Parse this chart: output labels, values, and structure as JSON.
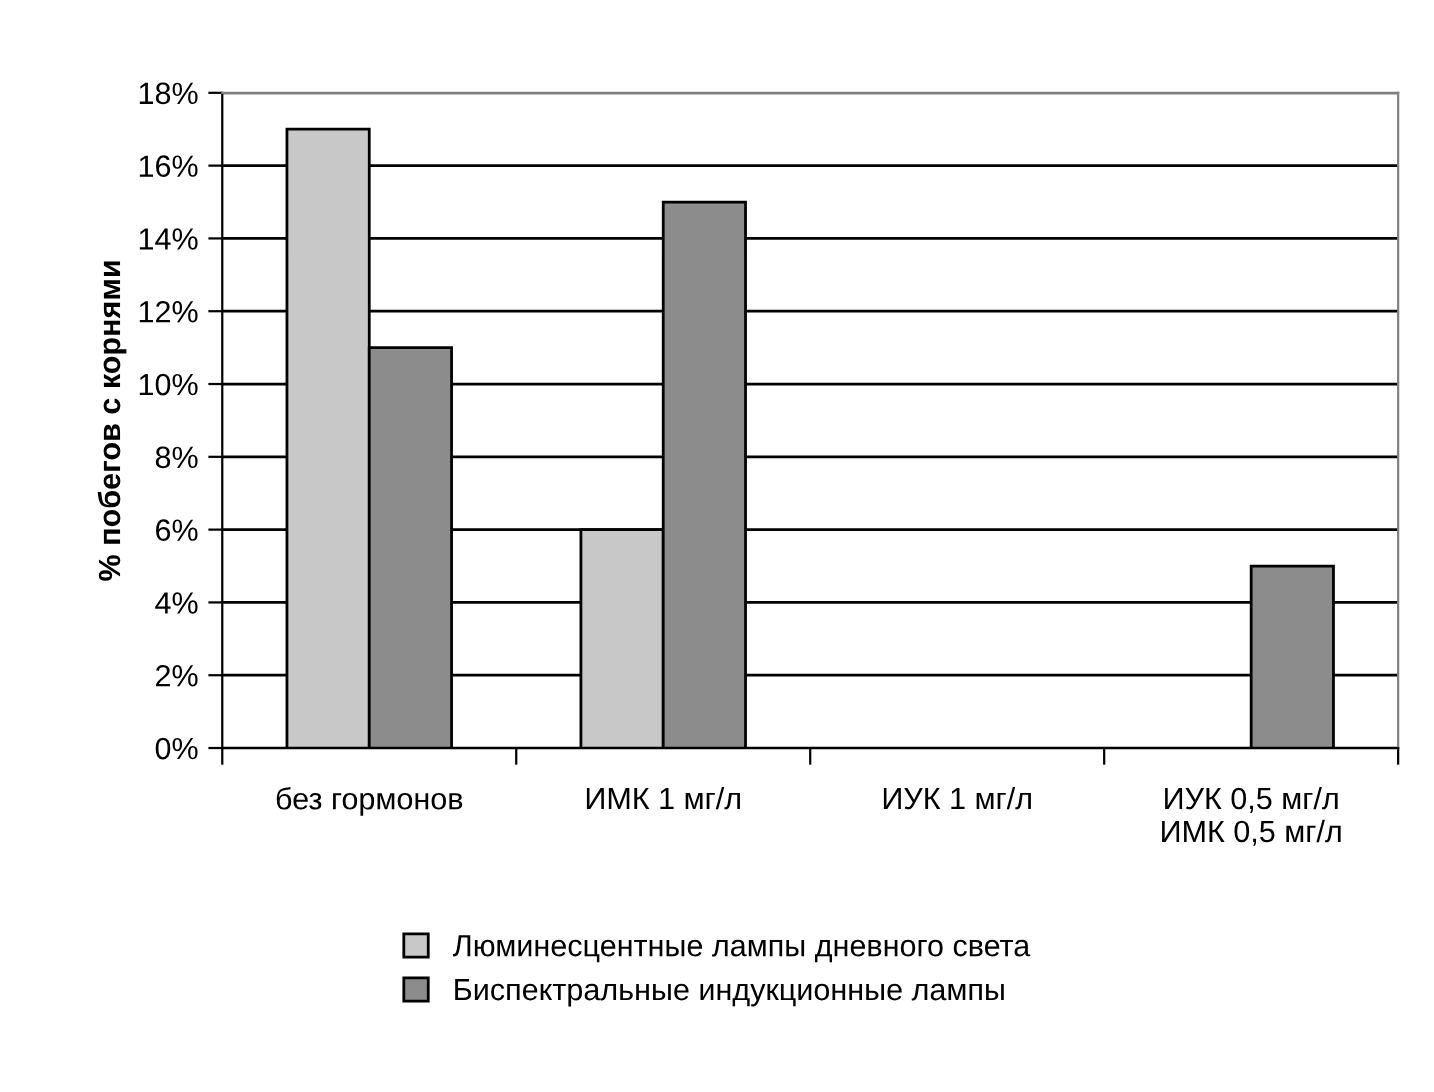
{
  "chart_data": {
    "type": "bar",
    "ylabel": "% побегов с корнями",
    "categories": [
      "без гормонов",
      "ИМК 1 мг/л",
      "ИУК 1 мг/л",
      "ИУК 0,5 мг/л\nИМК 0,5 мг/л"
    ],
    "series": [
      {
        "name": "Люминесцентные лампы дневного света",
        "color": "#c8c8c8",
        "values": [
          17,
          6,
          0,
          0
        ]
      },
      {
        "name": "Биспектральные индукционные лампы",
        "color": "#8c8c8c",
        "values": [
          11,
          15,
          0,
          5
        ]
      }
    ],
    "ylim": [
      0,
      18
    ],
    "yticks": [
      {
        "value": 0,
        "label": "0%"
      },
      {
        "value": 2,
        "label": "2%"
      },
      {
        "value": 4,
        "label": "4%"
      },
      {
        "value": 6,
        "label": "6%"
      },
      {
        "value": 8,
        "label": "8%"
      },
      {
        "value": 10,
        "label": "10%"
      },
      {
        "value": 12,
        "label": "12%"
      },
      {
        "value": 14,
        "label": "14%"
      },
      {
        "value": 16,
        "label": "16%"
      },
      {
        "value": 18,
        "label": "18%"
      }
    ],
    "grid": "y",
    "legend": "bottom"
  }
}
